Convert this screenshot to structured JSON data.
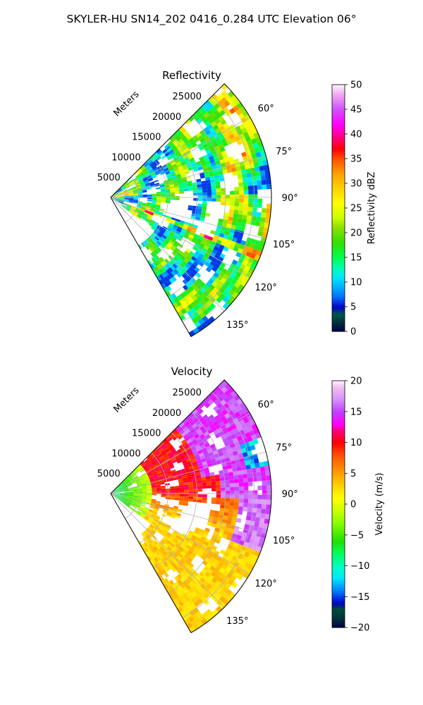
{
  "figure": {
    "suptitle": "SKYLER-HU  SN14_202  0416_0.284 UTC Elevation 06°"
  },
  "chart_data": [
    {
      "type": "heatmap",
      "projection": "polar-sector",
      "title": "Reflectivity",
      "radial_label": "Meters",
      "radial_ticks": [
        5000,
        10000,
        15000,
        20000,
        25000
      ],
      "radial_tick_labels": [
        "5000",
        "10000",
        "15000",
        "20000",
        "25000"
      ],
      "r_max": 28000,
      "azimuth_range_deg": [
        45,
        150
      ],
      "azimuth_ticks": [
        60,
        75,
        90,
        105,
        120,
        135
      ],
      "azimuth_tick_labels": [
        "60°",
        "75°",
        "90°",
        "105°",
        "120°",
        "135°"
      ],
      "grid": true,
      "colorbar": {
        "label": "Reflectivity dBZ",
        "range": [
          0,
          50
        ],
        "ticks": [
          0,
          5,
          10,
          15,
          20,
          25,
          30,
          35,
          40,
          45,
          50
        ],
        "tick_labels": [
          "0",
          "5",
          "10",
          "15",
          "20",
          "25",
          "30",
          "35",
          "40",
          "45",
          "50"
        ],
        "stops": [
          [
            0,
            "#00004a"
          ],
          [
            2,
            "#00333a"
          ],
          [
            3.5,
            "#00594a"
          ],
          [
            5,
            "#0000c8"
          ],
          [
            7,
            "#0070ff"
          ],
          [
            9,
            "#00b0ff"
          ],
          [
            11,
            "#00e6ff"
          ],
          [
            13,
            "#00ffb0"
          ],
          [
            15,
            "#00ff50"
          ],
          [
            18,
            "#33e000"
          ],
          [
            21,
            "#88e000"
          ],
          [
            23,
            "#c8ff00"
          ],
          [
            26,
            "#ffff00"
          ],
          [
            29,
            "#ffd200"
          ],
          [
            32,
            "#ffa000"
          ],
          [
            35,
            "#ff5000"
          ],
          [
            37,
            "#ff0000"
          ],
          [
            40,
            "#ff00a0"
          ],
          [
            42,
            "#ff00ff"
          ],
          [
            45,
            "#d050ff"
          ],
          [
            48,
            "#f0a8f0"
          ],
          [
            50,
            "#fff0ff"
          ]
        ]
      }
    },
    {
      "type": "heatmap",
      "projection": "polar-sector",
      "title": "Velocity",
      "radial_label": "Meters",
      "radial_ticks": [
        5000,
        10000,
        15000,
        20000,
        25000
      ],
      "radial_tick_labels": [
        "5000",
        "10000",
        "15000",
        "20000",
        "25000"
      ],
      "r_max": 28000,
      "azimuth_range_deg": [
        45,
        150
      ],
      "azimuth_ticks": [
        60,
        75,
        90,
        105,
        120,
        135
      ],
      "azimuth_tick_labels": [
        "60°",
        "75°",
        "90°",
        "105°",
        "120°",
        "135°"
      ],
      "grid": true,
      "colorbar": {
        "label": "Velocity (m/s)",
        "range": [
          -20,
          20
        ],
        "ticks": [
          -20,
          -15,
          -10,
          -5,
          0,
          5,
          10,
          15,
          20
        ],
        "tick_labels": [
          "−20",
          "−15",
          "−10",
          "−5",
          "0",
          "5",
          "10",
          "15",
          "20"
        ],
        "stops": [
          [
            -20,
            "#00004a"
          ],
          [
            -18.5,
            "#00333a"
          ],
          [
            -17,
            "#004a3a"
          ],
          [
            -16,
            "#0000c8"
          ],
          [
            -14,
            "#0080ff"
          ],
          [
            -12,
            "#00e6ff"
          ],
          [
            -10,
            "#00ffc0"
          ],
          [
            -8,
            "#00ff60"
          ],
          [
            -6,
            "#20e000"
          ],
          [
            -3,
            "#88ff00"
          ],
          [
            -1,
            "#ccff00"
          ],
          [
            1,
            "#ffff00"
          ],
          [
            3,
            "#ffd200"
          ],
          [
            5,
            "#ffa000"
          ],
          [
            8,
            "#ff5000"
          ],
          [
            10,
            "#ff0000"
          ],
          [
            12,
            "#ff0080"
          ],
          [
            13,
            "#ff00ff"
          ],
          [
            15,
            "#c040ff"
          ],
          [
            17,
            "#d890ff"
          ],
          [
            19,
            "#f0c0f0"
          ],
          [
            20,
            "#fff0ff"
          ]
        ]
      }
    }
  ]
}
